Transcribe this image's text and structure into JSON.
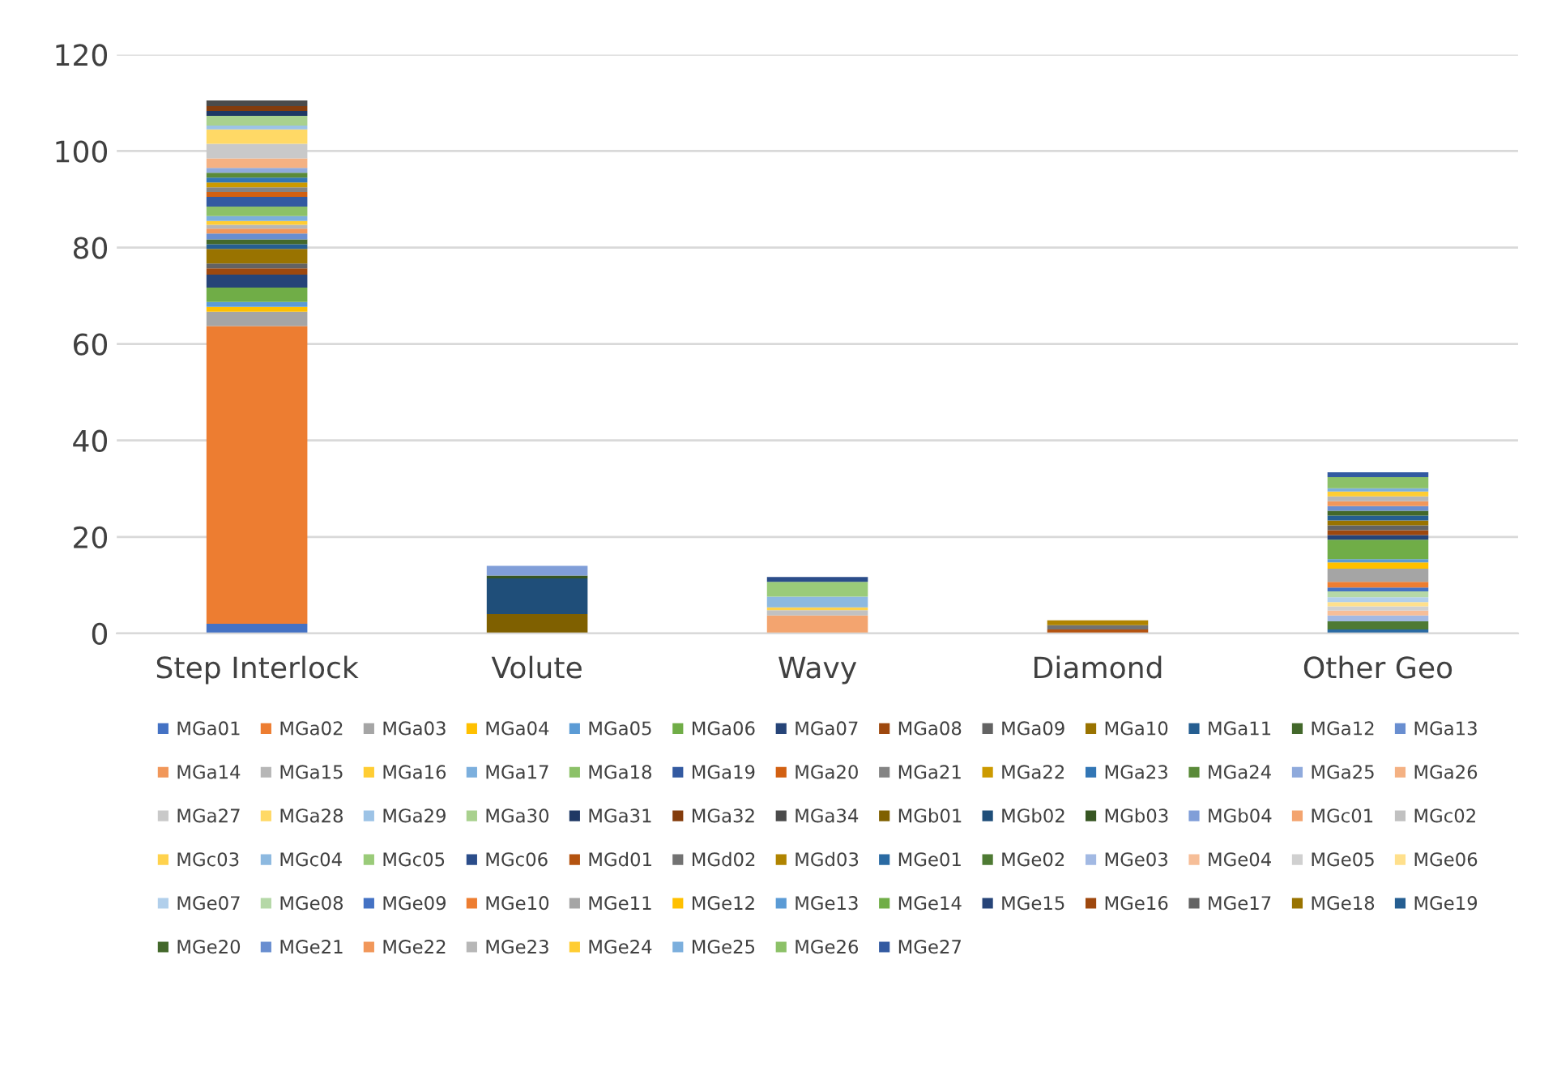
{
  "chart_data": {
    "type": "bar",
    "stacked": true,
    "categories": [
      "Step Interlock",
      "Volute",
      "Wavy",
      "Diamond",
      "Other Geo"
    ],
    "ylim": [
      0,
      120
    ],
    "yticks": [
      0,
      20,
      40,
      60,
      80,
      100,
      120
    ],
    "grid": "y",
    "legend": "bottom",
    "series": [
      {
        "name": "MGa01",
        "color": "#4472c4",
        "values": [
          2,
          null,
          null,
          null,
          null
        ]
      },
      {
        "name": "MGa02",
        "color": "#ed7d31",
        "values": [
          61.7,
          null,
          null,
          null,
          null
        ]
      },
      {
        "name": "MGa03",
        "color": "#a5a5a5",
        "values": [
          3,
          null,
          null,
          null,
          null
        ]
      },
      {
        "name": "MGa04",
        "color": "#ffc000",
        "values": [
          1,
          null,
          null,
          null,
          null
        ]
      },
      {
        "name": "MGa05",
        "color": "#5b9bd5",
        "values": [
          1,
          null,
          null,
          null,
          null
        ]
      },
      {
        "name": "MGa06",
        "color": "#70ad47",
        "values": [
          3,
          null,
          null,
          null,
          null
        ]
      },
      {
        "name": "MGa07",
        "color": "#264478",
        "values": [
          2.7,
          null,
          null,
          null,
          null
        ]
      },
      {
        "name": "MGa08",
        "color": "#9e480e",
        "values": [
          1.3,
          null,
          null,
          null,
          null
        ]
      },
      {
        "name": "MGa09",
        "color": "#636363",
        "values": [
          1,
          null,
          null,
          null,
          null
        ]
      },
      {
        "name": "MGa10",
        "color": "#997300",
        "values": [
          3,
          null,
          null,
          null,
          null
        ]
      },
      {
        "name": "MGa11",
        "color": "#255e91",
        "values": [
          1,
          null,
          null,
          null,
          null
        ]
      },
      {
        "name": "MGa12",
        "color": "#43682b",
        "values": [
          1,
          null,
          null,
          null,
          null
        ]
      },
      {
        "name": "MGa13",
        "color": "#698ed0",
        "values": [
          1.2,
          null,
          null,
          null,
          null
        ]
      },
      {
        "name": "MGa14",
        "color": "#f1975a",
        "values": [
          1,
          null,
          null,
          null,
          null
        ]
      },
      {
        "name": "MGa15",
        "color": "#b7b7b7",
        "values": [
          0.8,
          null,
          null,
          null,
          null
        ]
      },
      {
        "name": "MGa16",
        "color": "#ffcd33",
        "values": [
          0.8,
          null,
          null,
          null,
          null
        ]
      },
      {
        "name": "MGa17",
        "color": "#7cafdd",
        "values": [
          1,
          null,
          null,
          null,
          null
        ]
      },
      {
        "name": "MGa18",
        "color": "#8cc168",
        "values": [
          2,
          null,
          null,
          null,
          null
        ]
      },
      {
        "name": "MGa19",
        "color": "#335aa1",
        "values": [
          2,
          null,
          null,
          null,
          null
        ]
      },
      {
        "name": "MGa20",
        "color": "#d26012",
        "values": [
          1,
          null,
          null,
          null,
          null
        ]
      },
      {
        "name": "MGa21",
        "color": "#848484",
        "values": [
          1,
          null,
          null,
          null,
          null
        ]
      },
      {
        "name": "MGa22",
        "color": "#cc9a00",
        "values": [
          1,
          null,
          null,
          null,
          null
        ]
      },
      {
        "name": "MGa23",
        "color": "#3276b5",
        "values": [
          1,
          null,
          null,
          null,
          null
        ]
      },
      {
        "name": "MGa24",
        "color": "#5a8a39",
        "values": [
          1,
          null,
          null,
          null,
          null
        ]
      },
      {
        "name": "MGa25",
        "color": "#8faadc",
        "values": [
          1,
          null,
          null,
          null,
          null
        ]
      },
      {
        "name": "MGa26",
        "color": "#f4b183",
        "values": [
          2,
          null,
          null,
          null,
          null
        ]
      },
      {
        "name": "MGa27",
        "color": "#c9c9c9",
        "values": [
          3,
          null,
          null,
          null,
          null
        ]
      },
      {
        "name": "MGa28",
        "color": "#ffd966",
        "values": [
          3,
          null,
          null,
          null,
          null
        ]
      },
      {
        "name": "MGa29",
        "color": "#9dc3e6",
        "values": [
          0.8,
          null,
          null,
          null,
          null
        ]
      },
      {
        "name": "MGa30",
        "color": "#a9d18e",
        "values": [
          2,
          null,
          null,
          null,
          null
        ]
      },
      {
        "name": "MGa31",
        "color": "#1f3864",
        "values": [
          1,
          null,
          null,
          null,
          null
        ]
      },
      {
        "name": "MGa32",
        "color": "#843c0c",
        "values": [
          1,
          null,
          null,
          null,
          null
        ]
      },
      {
        "name": "MGa34",
        "color": "#4b4b4b",
        "values": [
          1.2,
          null,
          null,
          null,
          null
        ]
      },
      {
        "name": "MGb01",
        "color": "#7f6000",
        "values": [
          null,
          4,
          null,
          null,
          null
        ]
      },
      {
        "name": "MGb02",
        "color": "#1f4e79",
        "values": [
          null,
          7.4,
          null,
          null,
          null
        ]
      },
      {
        "name": "MGb03",
        "color": "#375623",
        "values": [
          null,
          0.6,
          null,
          null,
          null
        ]
      },
      {
        "name": "MGb04",
        "color": "#809ed8",
        "values": [
          null,
          2,
          null,
          null,
          null
        ]
      },
      {
        "name": "MGc01",
        "color": "#f3a46f",
        "values": [
          null,
          null,
          3.7,
          null,
          null
        ]
      },
      {
        "name": "MGc02",
        "color": "#c1c1c1",
        "values": [
          null,
          null,
          1.1,
          null,
          null
        ]
      },
      {
        "name": "MGc03",
        "color": "#ffd24d",
        "values": [
          null,
          null,
          0.6,
          null,
          null
        ]
      },
      {
        "name": "MGc04",
        "color": "#8db9e0",
        "values": [
          null,
          null,
          2.2,
          null,
          null
        ]
      },
      {
        "name": "MGc05",
        "color": "#9acb79",
        "values": [
          null,
          null,
          3.1,
          null,
          null
        ]
      },
      {
        "name": "MGc06",
        "color": "#2b4d8a",
        "values": [
          null,
          null,
          1,
          null,
          null
        ]
      },
      {
        "name": "MGd01",
        "color": "#b45310",
        "values": [
          null,
          null,
          null,
          0.8,
          null
        ]
      },
      {
        "name": "MGd02",
        "color": "#727272",
        "values": [
          null,
          null,
          null,
          0.9,
          null
        ]
      },
      {
        "name": "MGd03",
        "color": "#b08400",
        "values": [
          null,
          null,
          null,
          1,
          null
        ]
      },
      {
        "name": "MGe01",
        "color": "#2a6aa3",
        "values": [
          null,
          null,
          null,
          null,
          0.8
        ]
      },
      {
        "name": "MGe02",
        "color": "#4e7a33",
        "values": [
          null,
          null,
          null,
          null,
          1.7
        ]
      },
      {
        "name": "MGe03",
        "color": "#a2b9e3",
        "values": [
          null,
          null,
          null,
          null,
          1.2
        ]
      },
      {
        "name": "MGe04",
        "color": "#f6be98",
        "values": [
          null,
          null,
          null,
          null,
          1
        ]
      },
      {
        "name": "MGe05",
        "color": "#d0d0d0",
        "values": [
          null,
          null,
          null,
          null,
          0.9
        ]
      },
      {
        "name": "MGe06",
        "color": "#ffe08c",
        "values": [
          null,
          null,
          null,
          null,
          0.9
        ]
      },
      {
        "name": "MGe07",
        "color": "#b1cfeb",
        "values": [
          null,
          null,
          null,
          null,
          1
        ]
      },
      {
        "name": "MGe08",
        "color": "#b5d8a7",
        "values": [
          null,
          null,
          null,
          null,
          1.2
        ]
      },
      {
        "name": "MGe09",
        "color": "#4472c4",
        "values": [
          null,
          null,
          null,
          null,
          0.8
        ]
      },
      {
        "name": "MGe10",
        "color": "#ed7d31",
        "values": [
          null,
          null,
          null,
          null,
          1.2
        ]
      },
      {
        "name": "MGe11",
        "color": "#a5a5a5",
        "values": [
          null,
          null,
          null,
          null,
          2.7
        ]
      },
      {
        "name": "MGe12",
        "color": "#ffc000",
        "values": [
          null,
          null,
          null,
          null,
          1.3
        ]
      },
      {
        "name": "MGe13",
        "color": "#5b9bd5",
        "values": [
          null,
          null,
          null,
          null,
          0.7
        ]
      },
      {
        "name": "MGe14",
        "color": "#70ad47",
        "values": [
          null,
          null,
          null,
          null,
          4
        ]
      },
      {
        "name": "MGe15",
        "color": "#264478",
        "values": [
          null,
          null,
          null,
          null,
          1
        ]
      },
      {
        "name": "MGe16",
        "color": "#9e480e",
        "values": [
          null,
          null,
          null,
          null,
          1
        ]
      },
      {
        "name": "MGe17",
        "color": "#636363",
        "values": [
          null,
          null,
          null,
          null,
          1
        ]
      },
      {
        "name": "MGe18",
        "color": "#997300",
        "values": [
          null,
          null,
          null,
          null,
          1
        ]
      },
      {
        "name": "MGe19",
        "color": "#255e91",
        "values": [
          null,
          null,
          null,
          null,
          1
        ]
      },
      {
        "name": "MGe20",
        "color": "#43682b",
        "values": [
          null,
          null,
          null,
          null,
          1
        ]
      },
      {
        "name": "MGe21",
        "color": "#698ed0",
        "values": [
          null,
          null,
          null,
          null,
          1
        ]
      },
      {
        "name": "MGe22",
        "color": "#f1975a",
        "values": [
          null,
          null,
          null,
          null,
          1
        ]
      },
      {
        "name": "MGe23",
        "color": "#b7b7b7",
        "values": [
          null,
          null,
          null,
          null,
          1
        ]
      },
      {
        "name": "MGe24",
        "color": "#ffcd33",
        "values": [
          null,
          null,
          null,
          null,
          1
        ]
      },
      {
        "name": "MGe25",
        "color": "#7cafdd",
        "values": [
          null,
          null,
          null,
          null,
          0.7
        ]
      },
      {
        "name": "MGe26",
        "color": "#8cc168",
        "values": [
          null,
          null,
          null,
          null,
          2.3
        ]
      },
      {
        "name": "MGe27",
        "color": "#335aa1",
        "values": [
          null,
          null,
          null,
          null,
          1
        ]
      }
    ]
  }
}
